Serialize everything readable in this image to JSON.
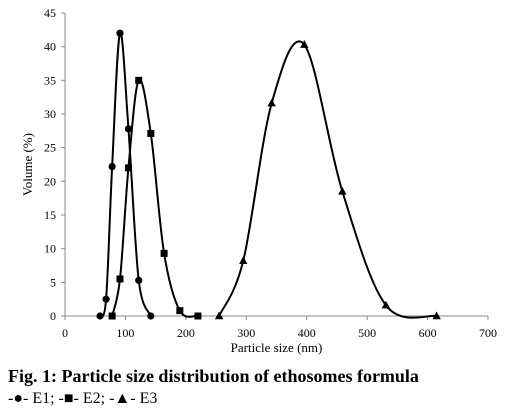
{
  "figure": {
    "caption": "Fig. 1: Particle size distribution of ethosomes formula",
    "legend_line": "-●- E1; -■- E2; -▲- E3"
  },
  "chart_data": {
    "type": "line",
    "title": "",
    "xlabel": "Particle size (nm)",
    "ylabel": "Volume (%)",
    "xlim": [
      0,
      700
    ],
    "ylim": [
      0,
      45
    ],
    "xticks": [
      0,
      100,
      200,
      300,
      400,
      500,
      600,
      700
    ],
    "yticks": [
      0,
      5,
      10,
      15,
      20,
      25,
      30,
      35,
      40,
      45
    ],
    "grid": false,
    "smooth": true,
    "series": [
      {
        "name": "E1",
        "marker": "circle",
        "color": "#000000",
        "x": [
          58,
          68,
          78,
          91,
          105,
          122,
          142
        ],
        "y": [
          0,
          2.5,
          22.2,
          42,
          27.8,
          5.3,
          0
        ]
      },
      {
        "name": "E2",
        "marker": "square",
        "color": "#000000",
        "x": [
          78,
          91,
          105,
          122,
          142,
          164,
          190,
          220
        ],
        "y": [
          0,
          5.5,
          22,
          35,
          27.1,
          9.3,
          0.8,
          0
        ]
      },
      {
        "name": "E3",
        "marker": "triangle",
        "color": "#000000",
        "x": [
          255,
          295,
          342,
          396,
          459,
          531,
          615
        ],
        "y": [
          0,
          8.2,
          31.6,
          40.3,
          18.5,
          1.6,
          0
        ]
      }
    ]
  }
}
